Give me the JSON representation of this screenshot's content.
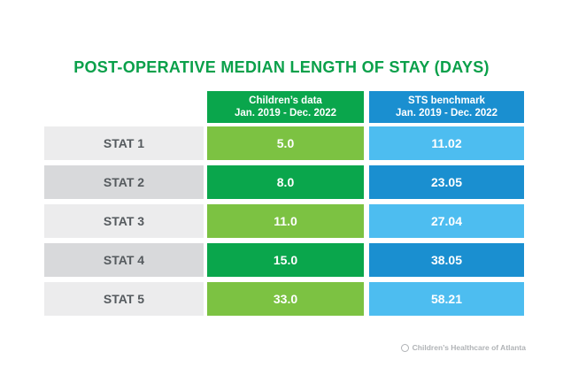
{
  "chart_data": {
    "type": "table",
    "title": "POST-OPERATIVE MEDIAN LENGTH OF STAY (DAYS)",
    "columns": [
      {
        "line1": "Children’s data",
        "line2": "Jan. 2019 - Dec. 2022",
        "color": "#0aa64c"
      },
      {
        "line1": "STS benchmark",
        "line2": "Jan. 2019 - Dec. 2022",
        "color": "#1a8fd0"
      }
    ],
    "rows": [
      {
        "label": "STAT 1",
        "childrens": "5.0",
        "sts": "11.02"
      },
      {
        "label": "STAT 2",
        "childrens": "8.0",
        "sts": "23.05"
      },
      {
        "label": "STAT 3",
        "childrens": "11.0",
        "sts": "27.04"
      },
      {
        "label": "STAT 4",
        "childrens": "15.0",
        "sts": "38.05"
      },
      {
        "label": "STAT 5",
        "childrens": "33.0",
        "sts": "58.21"
      }
    ]
  },
  "footer": {
    "text": "Children’s Healthcare of Atlanta",
    "icon": "logo-icon"
  }
}
